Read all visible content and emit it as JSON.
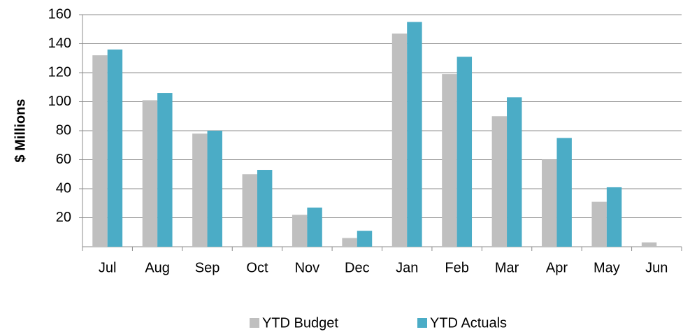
{
  "chart_data": {
    "type": "bar",
    "y_label": "$ Millions",
    "categories": [
      "Jul",
      "Aug",
      "Sep",
      "Oct",
      "Nov",
      "Dec",
      "Jan",
      "Feb",
      "Mar",
      "Apr",
      "May",
      "Jun"
    ],
    "series": [
      {
        "name": "YTD Budget",
        "color": "#bfbfbf",
        "values": [
          132,
          101,
          78,
          50,
          22,
          6,
          147,
          119,
          90,
          60,
          31,
          3
        ]
      },
      {
        "name": "YTD Actuals",
        "color": "#4bacc6",
        "values": [
          136,
          106,
          80,
          53,
          27,
          11,
          155,
          131,
          103,
          75,
          41,
          null
        ]
      }
    ],
    "ylim": [
      0,
      160
    ],
    "yticks": [
      20,
      40,
      60,
      80,
      100,
      120,
      140,
      160
    ],
    "grid": true,
    "legend": "bottom"
  }
}
